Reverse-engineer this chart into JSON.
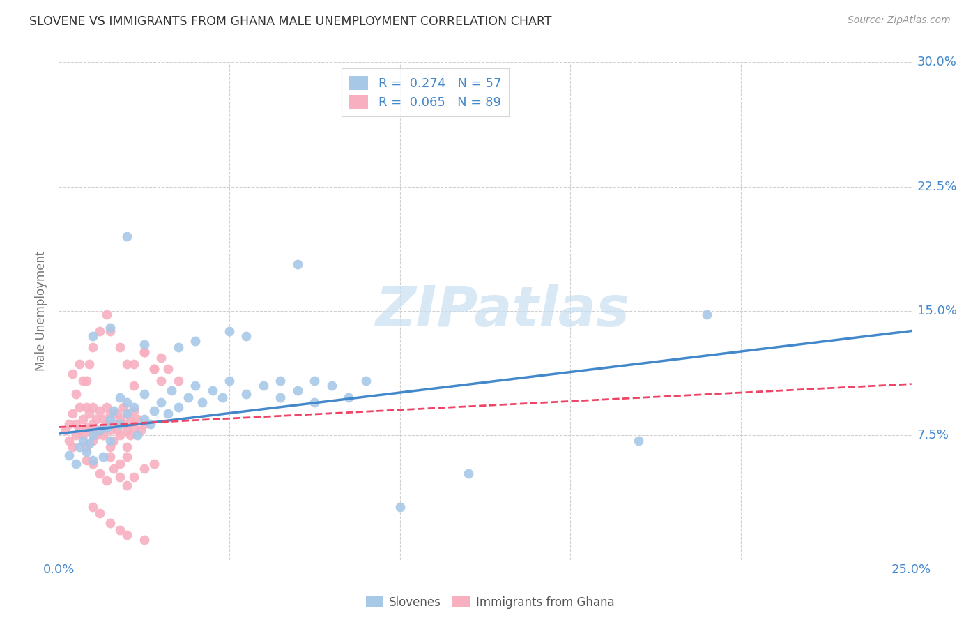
{
  "title": "SLOVENE VS IMMIGRANTS FROM GHANA MALE UNEMPLOYMENT CORRELATION CHART",
  "source": "Source: ZipAtlas.com",
  "ylabel": "Male Unemployment",
  "xlim": [
    0.0,
    0.25
  ],
  "ylim": [
    0.0,
    0.3
  ],
  "xticks": [
    0.0,
    0.05,
    0.1,
    0.15,
    0.2,
    0.25
  ],
  "yticks": [
    0.0,
    0.075,
    0.15,
    0.225,
    0.3
  ],
  "grid_color": "#d0d0d0",
  "background_color": "#ffffff",
  "scatter_slovene_color": "#a8c8e8",
  "scatter_ghana_color": "#f8b0c0",
  "line_slovene_color": "#4488cc",
  "line_ghana_color": "#ee4466",
  "watermark_color": "#c8dff0",
  "scatter_alpha": 0.9,
  "scatter_size": 100,
  "slovene_scatter": [
    [
      0.003,
      0.063
    ],
    [
      0.005,
      0.058
    ],
    [
      0.006,
      0.068
    ],
    [
      0.007,
      0.072
    ],
    [
      0.008,
      0.065
    ],
    [
      0.009,
      0.07
    ],
    [
      0.01,
      0.075
    ],
    [
      0.01,
      0.06
    ],
    [
      0.012,
      0.078
    ],
    [
      0.013,
      0.062
    ],
    [
      0.014,
      0.08
    ],
    [
      0.015,
      0.085
    ],
    [
      0.015,
      0.072
    ],
    [
      0.016,
      0.09
    ],
    [
      0.018,
      0.082
    ],
    [
      0.018,
      0.098
    ],
    [
      0.02,
      0.088
    ],
    [
      0.02,
      0.095
    ],
    [
      0.022,
      0.092
    ],
    [
      0.023,
      0.075
    ],
    [
      0.025,
      0.085
    ],
    [
      0.025,
      0.1
    ],
    [
      0.027,
      0.082
    ],
    [
      0.028,
      0.09
    ],
    [
      0.03,
      0.095
    ],
    [
      0.032,
      0.088
    ],
    [
      0.033,
      0.102
    ],
    [
      0.035,
      0.092
    ],
    [
      0.038,
      0.098
    ],
    [
      0.04,
      0.105
    ],
    [
      0.042,
      0.095
    ],
    [
      0.045,
      0.102
    ],
    [
      0.048,
      0.098
    ],
    [
      0.05,
      0.108
    ],
    [
      0.055,
      0.1
    ],
    [
      0.06,
      0.105
    ],
    [
      0.065,
      0.098
    ],
    [
      0.07,
      0.102
    ],
    [
      0.075,
      0.095
    ],
    [
      0.08,
      0.105
    ],
    [
      0.085,
      0.098
    ],
    [
      0.09,
      0.108
    ],
    [
      0.01,
      0.135
    ],
    [
      0.015,
      0.14
    ],
    [
      0.02,
      0.195
    ],
    [
      0.025,
      0.13
    ],
    [
      0.035,
      0.128
    ],
    [
      0.04,
      0.132
    ],
    [
      0.05,
      0.138
    ],
    [
      0.055,
      0.135
    ],
    [
      0.065,
      0.108
    ],
    [
      0.07,
      0.178
    ],
    [
      0.075,
      0.108
    ],
    [
      0.19,
      0.148
    ],
    [
      0.17,
      0.072
    ],
    [
      0.12,
      0.052
    ],
    [
      0.1,
      0.032
    ]
  ],
  "ghana_scatter": [
    [
      0.002,
      0.078
    ],
    [
      0.003,
      0.082
    ],
    [
      0.003,
      0.072
    ],
    [
      0.004,
      0.088
    ],
    [
      0.004,
      0.068
    ],
    [
      0.005,
      0.075
    ],
    [
      0.005,
      0.082
    ],
    [
      0.006,
      0.078
    ],
    [
      0.006,
      0.092
    ],
    [
      0.007,
      0.075
    ],
    [
      0.007,
      0.085
    ],
    [
      0.008,
      0.08
    ],
    [
      0.008,
      0.092
    ],
    [
      0.008,
      0.068
    ],
    [
      0.009,
      0.088
    ],
    [
      0.009,
      0.078
    ],
    [
      0.01,
      0.082
    ],
    [
      0.01,
      0.092
    ],
    [
      0.01,
      0.072
    ],
    [
      0.011,
      0.085
    ],
    [
      0.011,
      0.075
    ],
    [
      0.012,
      0.09
    ],
    [
      0.012,
      0.078
    ],
    [
      0.013,
      0.085
    ],
    [
      0.013,
      0.075
    ],
    [
      0.014,
      0.082
    ],
    [
      0.014,
      0.092
    ],
    [
      0.015,
      0.088
    ],
    [
      0.015,
      0.078
    ],
    [
      0.015,
      0.068
    ],
    [
      0.016,
      0.082
    ],
    [
      0.016,
      0.072
    ],
    [
      0.017,
      0.088
    ],
    [
      0.017,
      0.078
    ],
    [
      0.018,
      0.085
    ],
    [
      0.018,
      0.075
    ],
    [
      0.019,
      0.082
    ],
    [
      0.019,
      0.092
    ],
    [
      0.02,
      0.088
    ],
    [
      0.02,
      0.078
    ],
    [
      0.02,
      0.068
    ],
    [
      0.021,
      0.085
    ],
    [
      0.021,
      0.075
    ],
    [
      0.022,
      0.09
    ],
    [
      0.022,
      0.08
    ],
    [
      0.023,
      0.085
    ],
    [
      0.024,
      0.078
    ],
    [
      0.025,
      0.082
    ],
    [
      0.005,
      0.1
    ],
    [
      0.007,
      0.108
    ],
    [
      0.009,
      0.118
    ],
    [
      0.01,
      0.128
    ],
    [
      0.012,
      0.138
    ],
    [
      0.014,
      0.148
    ],
    [
      0.015,
      0.138
    ],
    [
      0.018,
      0.128
    ],
    [
      0.02,
      0.118
    ],
    [
      0.022,
      0.105
    ],
    [
      0.025,
      0.125
    ],
    [
      0.028,
      0.115
    ],
    [
      0.03,
      0.108
    ],
    [
      0.008,
      0.06
    ],
    [
      0.01,
      0.058
    ],
    [
      0.012,
      0.052
    ],
    [
      0.014,
      0.048
    ],
    [
      0.016,
      0.055
    ],
    [
      0.018,
      0.05
    ],
    [
      0.02,
      0.045
    ],
    [
      0.022,
      0.05
    ],
    [
      0.025,
      0.055
    ],
    [
      0.028,
      0.058
    ],
    [
      0.004,
      0.112
    ],
    [
      0.006,
      0.118
    ],
    [
      0.008,
      0.108
    ],
    [
      0.015,
      0.062
    ],
    [
      0.018,
      0.058
    ],
    [
      0.02,
      0.062
    ],
    [
      0.022,
      0.118
    ],
    [
      0.025,
      0.125
    ],
    [
      0.028,
      0.115
    ],
    [
      0.03,
      0.122
    ],
    [
      0.032,
      0.115
    ],
    [
      0.035,
      0.108
    ],
    [
      0.015,
      0.022
    ],
    [
      0.018,
      0.018
    ],
    [
      0.02,
      0.015
    ],
    [
      0.012,
      0.028
    ],
    [
      0.025,
      0.012
    ],
    [
      0.01,
      0.032
    ]
  ],
  "slovene_line": {
    "x_start": 0.0,
    "y_start": 0.076,
    "x_end": 0.25,
    "y_end": 0.138
  },
  "ghana_line": {
    "x_start": 0.0,
    "y_start": 0.08,
    "x_end": 0.25,
    "y_end": 0.106
  }
}
